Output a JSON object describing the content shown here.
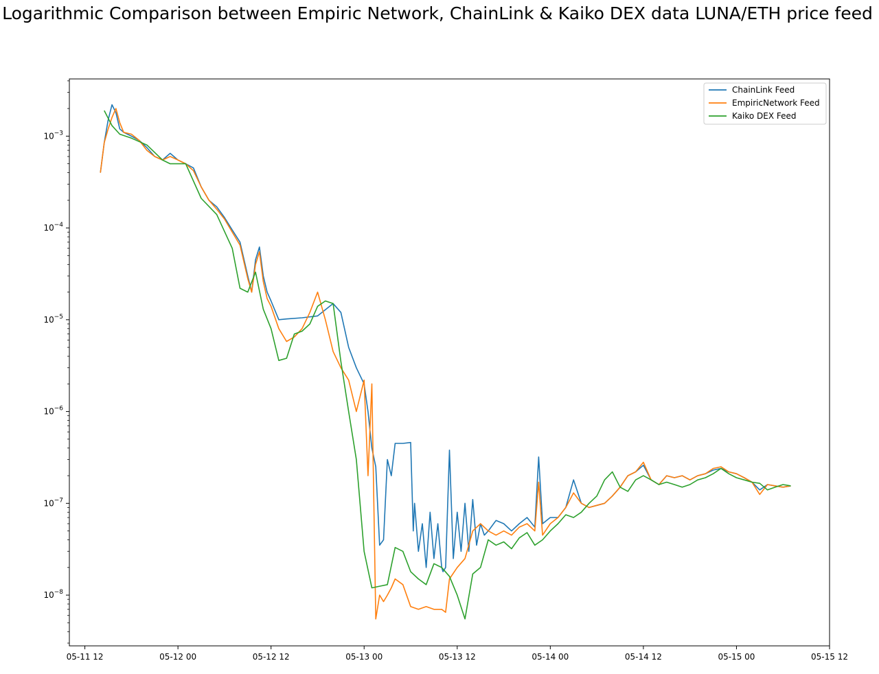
{
  "chart_data": {
    "type": "line",
    "title": "Logarithmic Comparison between Empiric Network, ChainLink & Kaiko DEX data LUNA/ETH price feed",
    "xlabel": "",
    "ylabel": "",
    "yscale": "log",
    "x_axis_type": "datetime",
    "xlim": [
      "2022-05-11 10:00",
      "2022-05-15 12:00"
    ],
    "ylim": [
      2.8e-09,
      0.0042
    ],
    "grid": false,
    "legend_position": "top-right",
    "x_tick_labels": [
      "05-11 12",
      "05-12 00",
      "05-12 12",
      "05-13 00",
      "05-13 12",
      "05-14 00",
      "05-14 12",
      "05-15 00",
      "05-15 12"
    ],
    "y_tick_labels": [
      {
        "value": 0.001,
        "base": "10",
        "exp": "−3"
      },
      {
        "value": 0.0001,
        "base": "10",
        "exp": "−4"
      },
      {
        "value": 1e-05,
        "base": "10",
        "exp": "−5"
      },
      {
        "value": 1e-06,
        "base": "10",
        "exp": "−6"
      },
      {
        "value": 1e-07,
        "base": "10",
        "exp": "−7"
      },
      {
        "value": 1e-08,
        "base": "10",
        "exp": "−8"
      }
    ],
    "series": [
      {
        "name": "ChainLink Feed",
        "color": "#1f77b4",
        "x": [
          "05-11 14:00",
          "05-11 14:30",
          "05-11 15:00",
          "05-11 15:30",
          "05-11 16:00",
          "05-11 16:30",
          "05-11 17:00",
          "05-11 18:00",
          "05-11 19:00",
          "05-11 20:00",
          "05-11 21:00",
          "05-11 22:00",
          "05-11 23:00",
          "05-12 00:00",
          "05-12 01:00",
          "05-12 02:00",
          "05-12 03:00",
          "05-12 04:00",
          "05-12 05:00",
          "05-12 06:00",
          "05-12 07:00",
          "05-12 08:00",
          "05-12 09:00",
          "05-12 09:30",
          "05-12 10:00",
          "05-12 10:30",
          "05-12 11:00",
          "05-12 11:30",
          "05-12 12:00",
          "05-12 13:00",
          "05-12 14:00",
          "05-12 16:00",
          "05-12 18:00",
          "05-12 20:00",
          "05-12 21:00",
          "05-12 22:00",
          "05-12 23:00",
          "05-13 00:00",
          "05-13 00:30",
          "05-13 01:00",
          "05-13 01:30",
          "05-13 02:00",
          "05-13 02:30",
          "05-13 03:00",
          "05-13 03:30",
          "05-13 04:00",
          "05-13 05:00",
          "05-13 06:00",
          "05-13 06:20",
          "05-13 06:30",
          "05-13 07:00",
          "05-13 07:30",
          "05-13 08:00",
          "05-13 08:30",
          "05-13 09:00",
          "05-13 09:30",
          "05-13 10:00",
          "05-13 10:10",
          "05-13 10:30",
          "05-13 11:00",
          "05-13 11:30",
          "05-13 12:00",
          "05-13 12:30",
          "05-13 13:00",
          "05-13 13:30",
          "05-13 14:00",
          "05-13 14:30",
          "05-13 15:00",
          "05-13 15:30",
          "05-13 16:00",
          "05-13 17:00",
          "05-13 18:00",
          "05-13 19:00",
          "05-13 20:00",
          "05-13 21:00",
          "05-13 22:00",
          "05-13 22:30",
          "05-13 23:00",
          "05-14 00:00",
          "05-14 01:00",
          "05-14 02:00",
          "05-14 03:00",
          "05-14 04:00",
          "05-14 05:00",
          "05-14 06:00",
          "05-14 07:00",
          "05-14 08:00",
          "05-14 09:00",
          "05-14 10:00",
          "05-14 11:00",
          "05-14 12:00",
          "05-14 13:00",
          "05-14 14:00",
          "05-14 15:00",
          "05-14 16:00",
          "05-14 17:00",
          "05-14 18:00",
          "05-14 19:00",
          "05-14 20:00",
          "05-14 21:00",
          "05-14 22:00",
          "05-14 23:00",
          "05-15 00:00",
          "05-15 01:00",
          "05-15 02:00",
          "05-15 03:00",
          "05-15 04:00",
          "05-15 05:00",
          "05-15 06:00",
          "05-15 07:00"
        ],
        "y": [
          0.0004,
          0.00085,
          0.0015,
          0.0022,
          0.0018,
          0.0012,
          0.0011,
          0.001,
          0.0009,
          0.00075,
          0.0006,
          0.00055,
          0.00065,
          0.00055,
          0.0005,
          0.00045,
          0.00028,
          0.0002,
          0.00017,
          0.00013,
          9.5e-05,
          7e-05,
          3e-05,
          2e-05,
          4.5e-05,
          6.2e-05,
          3e-05,
          2e-05,
          1.6e-05,
          1e-05,
          1.02e-05,
          1.05e-05,
          1.1e-05,
          1.5e-05,
          1.2e-05,
          5e-06,
          3e-06,
          2e-06,
          1e-06,
          4e-07,
          2.5e-07,
          3.5e-08,
          4e-08,
          3e-07,
          2e-07,
          4.5e-07,
          4.5e-07,
          4.6e-07,
          5e-08,
          1e-07,
          3e-08,
          6e-08,
          2e-08,
          8e-08,
          2.5e-08,
          6e-08,
          2e-08,
          1.8e-08,
          2e-08,
          3.8e-07,
          2.5e-08,
          8e-08,
          3e-08,
          1e-07,
          3e-08,
          1.1e-07,
          3.5e-08,
          6e-08,
          4.5e-08,
          5e-08,
          6.5e-08,
          6e-08,
          5e-08,
          6e-08,
          7e-08,
          5.5e-08,
          3.2e-07,
          6e-08,
          7e-08,
          7e-08,
          9e-08,
          1.8e-07,
          1e-07,
          9e-08,
          9.5e-08,
          1e-07,
          1.2e-07,
          1.5e-07,
          2e-07,
          2.2e-07,
          2.6e-07,
          1.8e-07,
          1.6e-07,
          2e-07,
          1.9e-07,
          2e-07,
          1.8e-07,
          2e-07,
          2.1e-07,
          2.3e-07,
          2.4e-07,
          2.2e-07,
          2.1e-07,
          1.9e-07,
          1.7e-07,
          1.4e-07,
          1.6e-07,
          1.55e-07,
          1.5e-07,
          1.55e-07
        ]
      },
      {
        "name": "EmpiricNetwork Feed",
        "color": "#ff7f0e",
        "x": [
          "05-11 14:00",
          "05-11 14:30",
          "05-11 15:00",
          "05-11 15:30",
          "05-11 16:00",
          "05-11 16:30",
          "05-11 17:00",
          "05-11 18:00",
          "05-11 19:00",
          "05-11 20:00",
          "05-11 21:00",
          "05-11 22:00",
          "05-11 23:00",
          "05-12 00:00",
          "05-12 01:00",
          "05-12 02:00",
          "05-12 03:00",
          "05-12 04:00",
          "05-12 05:00",
          "05-12 06:00",
          "05-12 07:00",
          "05-12 08:00",
          "05-12 09:00",
          "05-12 09:30",
          "05-12 10:00",
          "05-12 10:30",
          "05-12 11:00",
          "05-12 11:30",
          "05-12 12:00",
          "05-12 13:00",
          "05-12 14:00",
          "05-12 15:00",
          "05-12 16:00",
          "05-12 17:00",
          "05-12 18:00",
          "05-12 19:00",
          "05-12 20:00",
          "05-12 21:00",
          "05-12 22:00",
          "05-12 23:00",
          "05-13 00:00",
          "05-13 00:30",
          "05-13 01:00",
          "05-13 01:30",
          "05-13 02:00",
          "05-13 02:30",
          "05-13 03:00",
          "05-13 03:30",
          "05-13 04:00",
          "05-13 05:00",
          "05-13 06:00",
          "05-13 07:00",
          "05-13 08:00",
          "05-13 09:00",
          "05-13 10:00",
          "05-13 10:30",
          "05-13 11:00",
          "05-13 12:00",
          "05-13 13:00",
          "05-13 14:00",
          "05-13 15:00",
          "05-13 16:00",
          "05-13 17:00",
          "05-13 18:00",
          "05-13 19:00",
          "05-13 20:00",
          "05-13 21:00",
          "05-13 22:00",
          "05-13 22:30",
          "05-13 23:00",
          "05-14 00:00",
          "05-14 01:00",
          "05-14 02:00",
          "05-14 03:00",
          "05-14 04:00",
          "05-14 05:00",
          "05-14 06:00",
          "05-14 07:00",
          "05-14 08:00",
          "05-14 09:00",
          "05-14 10:00",
          "05-14 11:00",
          "05-14 12:00",
          "05-14 13:00",
          "05-14 14:00",
          "05-14 15:00",
          "05-14 16:00",
          "05-14 17:00",
          "05-14 18:00",
          "05-14 19:00",
          "05-14 20:00",
          "05-14 21:00",
          "05-14 22:00",
          "05-14 23:00",
          "05-15 00:00",
          "05-15 01:00",
          "05-15 02:00",
          "05-15 03:00",
          "05-15 04:00",
          "05-15 05:00",
          "05-15 06:00",
          "05-15 07:00"
        ],
        "y": [
          0.0004,
          0.00085,
          0.0012,
          0.0016,
          0.002,
          0.0014,
          0.0011,
          0.00105,
          0.0009,
          0.0007,
          0.0006,
          0.00055,
          0.0006,
          0.00055,
          0.0005,
          0.00042,
          0.00028,
          0.0002,
          0.00016,
          0.000125,
          9e-05,
          6.5e-05,
          2.8e-05,
          2e-05,
          4e-05,
          5.5e-05,
          2.6e-05,
          1.7e-05,
          1.4e-05,
          8e-06,
          5.8e-06,
          6.5e-06,
          8e-06,
          1.2e-05,
          2e-05,
          1e-05,
          4.5e-06,
          3e-06,
          2.2e-06,
          1e-06,
          2.2e-06,
          2e-07,
          2e-06,
          5.5e-09,
          1e-08,
          8.5e-09,
          1e-08,
          1.2e-08,
          1.5e-08,
          1.3e-08,
          7.5e-09,
          7e-09,
          7.5e-09,
          7e-09,
          7e-09,
          6.5e-09,
          1.5e-08,
          2e-08,
          2.5e-08,
          5e-08,
          6e-08,
          5e-08,
          4.5e-08,
          5e-08,
          4.5e-08,
          5.5e-08,
          6e-08,
          5e-08,
          1.7e-07,
          4.5e-08,
          6e-08,
          7e-08,
          9e-08,
          1.3e-07,
          1e-07,
          9e-08,
          9.5e-08,
          1e-07,
          1.2e-07,
          1.5e-07,
          2e-07,
          2.2e-07,
          2.8e-07,
          1.8e-07,
          1.6e-07,
          2e-07,
          1.9e-07,
          2e-07,
          1.8e-07,
          2e-07,
          2.1e-07,
          2.4e-07,
          2.5e-07,
          2.2e-07,
          2.1e-07,
          1.9e-07,
          1.7e-07,
          1.25e-07,
          1.6e-07,
          1.55e-07,
          1.5e-07,
          1.55e-07
        ]
      },
      {
        "name": "Kaiko DEX Feed",
        "color": "#2ca02c",
        "x": [
          "05-11 14:30",
          "05-11 15:30",
          "05-11 16:30",
          "05-11 18:00",
          "05-11 20:00",
          "05-11 22:00",
          "05-11 23:00",
          "05-12 01:00",
          "05-12 03:00",
          "05-12 05:00",
          "05-12 07:00",
          "05-12 08:00",
          "05-12 09:00",
          "05-12 10:00",
          "05-12 11:00",
          "05-12 12:00",
          "05-12 13:00",
          "05-12 14:00",
          "05-12 15:00",
          "05-12 16:00",
          "05-12 17:00",
          "05-12 18:00",
          "05-12 19:00",
          "05-12 20:00",
          "05-12 21:00",
          "05-12 22:00",
          "05-12 23:00",
          "05-13 00:00",
          "05-13 01:00",
          "05-13 02:00",
          "05-13 03:00",
          "05-13 04:00",
          "05-13 05:00",
          "05-13 06:00",
          "05-13 07:00",
          "05-13 08:00",
          "05-13 09:00",
          "05-13 10:00",
          "05-13 11:00",
          "05-13 12:00",
          "05-13 13:00",
          "05-13 14:00",
          "05-13 15:00",
          "05-13 16:00",
          "05-13 17:00",
          "05-13 18:00",
          "05-13 19:00",
          "05-13 20:00",
          "05-13 21:00",
          "05-13 22:00",
          "05-13 23:00",
          "05-14 00:00",
          "05-14 01:00",
          "05-14 02:00",
          "05-14 03:00",
          "05-14 04:00",
          "05-14 05:00",
          "05-14 06:00",
          "05-14 07:00",
          "05-14 08:00",
          "05-14 09:00",
          "05-14 10:00",
          "05-14 11:00",
          "05-14 12:00",
          "05-14 13:00",
          "05-14 14:00",
          "05-14 15:00",
          "05-14 16:00",
          "05-14 17:00",
          "05-14 18:00",
          "05-14 19:00",
          "05-14 20:00",
          "05-14 21:00",
          "05-14 22:00",
          "05-14 23:00",
          "05-15 00:00",
          "05-15 01:00",
          "05-15 02:00",
          "05-15 03:00",
          "05-15 04:00",
          "05-15 05:00",
          "05-15 06:00",
          "05-15 07:00"
        ],
        "y": [
          0.0019,
          0.0013,
          0.00105,
          0.00095,
          0.0008,
          0.00055,
          0.0005,
          0.0005,
          0.00021,
          0.00014,
          6e-05,
          2.2e-05,
          2e-05,
          3.3e-05,
          1.3e-05,
          8e-06,
          3.6e-06,
          3.8e-06,
          7e-06,
          7.5e-06,
          9e-06,
          1.4e-05,
          1.6e-05,
          1.5e-05,
          3.5e-06,
          1e-06,
          3e-07,
          3e-08,
          1.2e-08,
          1.25e-08,
          1.3e-08,
          3.3e-08,
          3e-08,
          1.8e-08,
          1.5e-08,
          1.3e-08,
          2.2e-08,
          2e-08,
          1.6e-08,
          1e-08,
          5.5e-09,
          1.7e-08,
          2e-08,
          4e-08,
          3.5e-08,
          3.8e-08,
          3.2e-08,
          4.2e-08,
          4.8e-08,
          3.5e-08,
          4e-08,
          5e-08,
          6e-08,
          7.5e-08,
          7e-08,
          8e-08,
          1e-07,
          1.2e-07,
          1.8e-07,
          2.2e-07,
          1.5e-07,
          1.35e-07,
          1.8e-07,
          2e-07,
          1.8e-07,
          1.6e-07,
          1.7e-07,
          1.6e-07,
          1.5e-07,
          1.6e-07,
          1.8e-07,
          1.9e-07,
          2.1e-07,
          2.4e-07,
          2.1e-07,
          1.9e-07,
          1.8e-07,
          1.7e-07,
          1.65e-07,
          1.4e-07,
          1.5e-07,
          1.6e-07,
          1.55e-07
        ]
      }
    ]
  }
}
